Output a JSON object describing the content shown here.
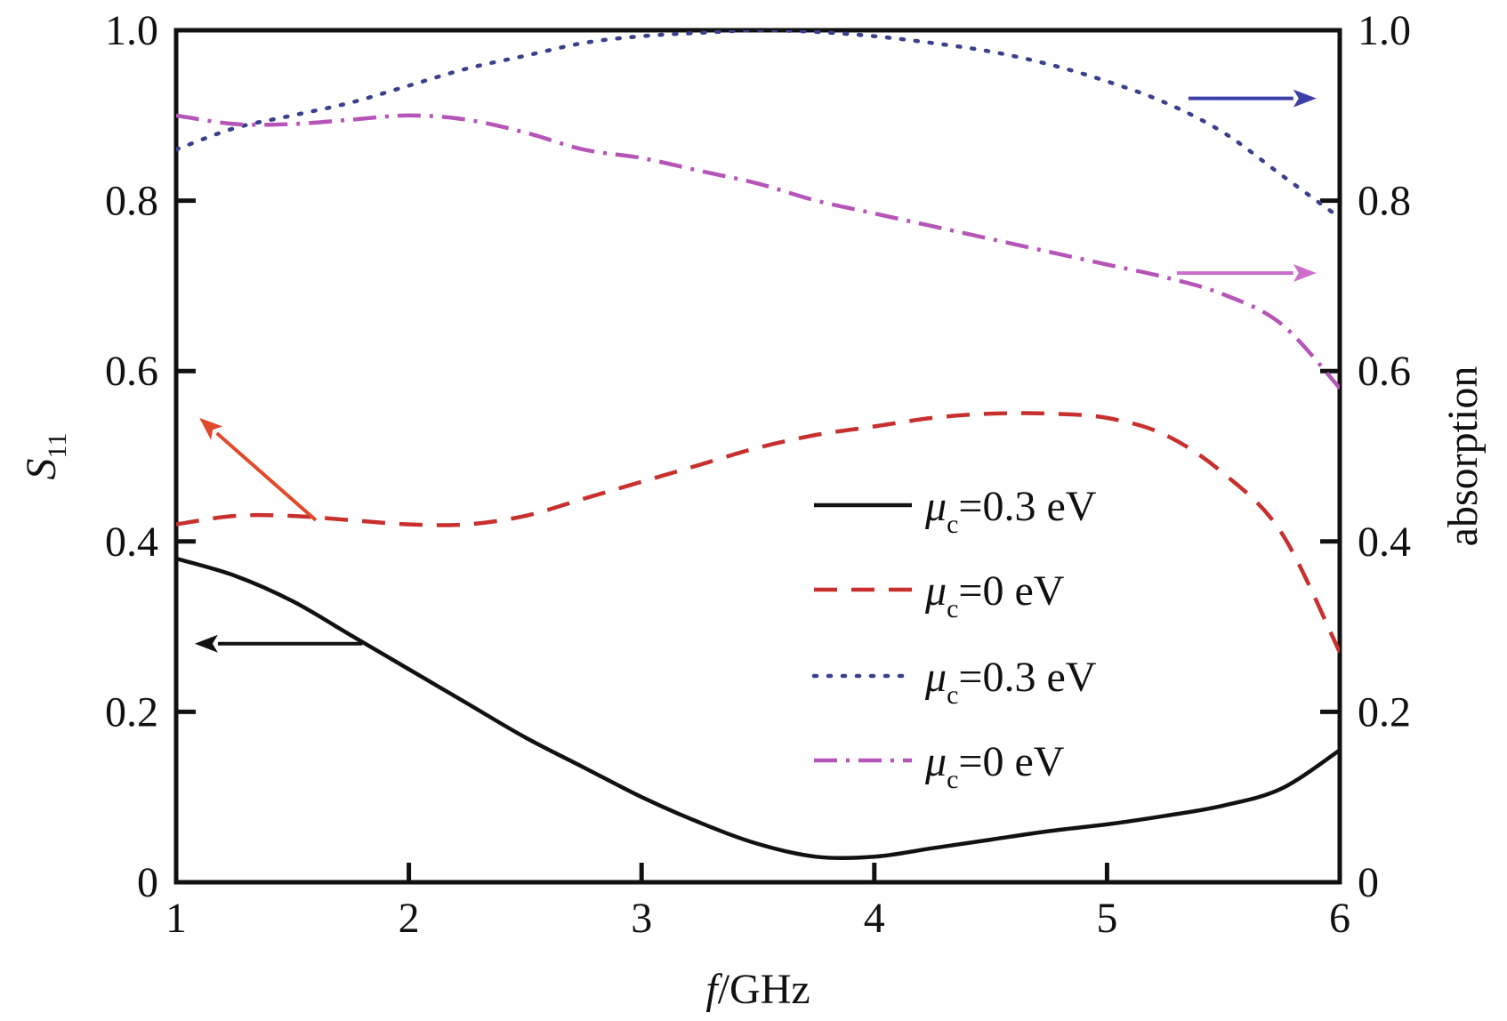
{
  "chart_data": {
    "type": "line",
    "title": "",
    "xlabel": {
      "italic": "f",
      "rest": "/GHz"
    },
    "ylabel_left": {
      "main": "S",
      "sub": "11"
    },
    "ylabel_right": "absorption",
    "xlim": [
      1,
      6
    ],
    "ylim_left": [
      0,
      1.0
    ],
    "ylim_right": [
      0,
      1.0
    ],
    "grid": false,
    "legend_position": "center-right",
    "x_ticks": [
      "1",
      "2",
      "3",
      "4",
      "5",
      "6"
    ],
    "y_ticks_left": [
      "0",
      "0.2",
      "0.4",
      "0.6",
      "0.8",
      "1.0"
    ],
    "y_ticks_right": [
      "0",
      "0.2",
      "0.4",
      "0.6",
      "0.8",
      "1.0"
    ],
    "series": [
      {
        "name_mu": "μ",
        "name_sub": "c",
        "name_rest": "=0.3 eV",
        "axis": "left",
        "style": "solid",
        "color": "#111111",
        "x": [
          1.0,
          1.25,
          1.5,
          1.75,
          2.0,
          2.25,
          2.5,
          2.75,
          3.0,
          3.25,
          3.5,
          3.75,
          4.0,
          4.25,
          4.5,
          4.75,
          5.0,
          5.25,
          5.5,
          5.75,
          6.0
        ],
        "y": [
          0.38,
          0.36,
          0.33,
          0.29,
          0.25,
          0.21,
          0.17,
          0.135,
          0.1,
          0.07,
          0.045,
          0.03,
          0.03,
          0.04,
          0.05,
          0.06,
          0.068,
          0.078,
          0.09,
          0.11,
          0.155
        ]
      },
      {
        "name_mu": "μ",
        "name_sub": "c",
        "name_rest": "=0 eV",
        "axis": "left",
        "style": "dashed",
        "color": "#c8302e",
        "x": [
          1.0,
          1.25,
          1.5,
          1.75,
          2.0,
          2.25,
          2.5,
          2.75,
          3.0,
          3.25,
          3.5,
          3.75,
          4.0,
          4.25,
          4.5,
          4.75,
          5.0,
          5.25,
          5.5,
          5.75,
          6.0
        ],
        "y": [
          0.42,
          0.43,
          0.43,
          0.425,
          0.42,
          0.42,
          0.43,
          0.45,
          0.47,
          0.49,
          0.51,
          0.525,
          0.535,
          0.545,
          0.55,
          0.55,
          0.545,
          0.525,
          0.48,
          0.41,
          0.27
        ]
      },
      {
        "name_mu": "μ",
        "name_sub": "c",
        "name_rest": "=0.3 eV",
        "axis": "right",
        "style": "dotted",
        "color": "#3b3f8c",
        "x": [
          1.0,
          1.25,
          1.5,
          1.75,
          2.0,
          2.25,
          2.5,
          2.75,
          3.0,
          3.25,
          3.5,
          3.75,
          4.0,
          4.25,
          4.5,
          4.75,
          5.0,
          5.25,
          5.5,
          5.75,
          6.0
        ],
        "y": [
          0.86,
          0.885,
          0.9,
          0.915,
          0.935,
          0.955,
          0.97,
          0.985,
          0.993,
          0.997,
          1.0,
          0.998,
          0.993,
          0.985,
          0.975,
          0.96,
          0.94,
          0.915,
          0.88,
          0.83,
          0.78
        ]
      },
      {
        "name_mu": "μ",
        "name_sub": "c",
        "name_rest": "=0 eV",
        "axis": "right",
        "style": "dashdot",
        "color": "#b655b8",
        "x": [
          1.0,
          1.25,
          1.5,
          1.75,
          2.0,
          2.25,
          2.5,
          2.75,
          3.0,
          3.25,
          3.5,
          3.75,
          4.0,
          4.25,
          4.5,
          4.75,
          5.0,
          5.25,
          5.5,
          5.75,
          6.0
        ],
        "y": [
          0.9,
          0.89,
          0.89,
          0.895,
          0.9,
          0.895,
          0.88,
          0.86,
          0.85,
          0.835,
          0.82,
          0.8,
          0.785,
          0.77,
          0.755,
          0.74,
          0.725,
          0.71,
          0.69,
          0.655,
          0.58
        ]
      }
    ],
    "annotations": [
      {
        "type": "arrow",
        "color": "#111111",
        "from": [
          1.8,
          0.28
        ],
        "to": [
          1.08,
          0.28
        ],
        "axis": "left"
      },
      {
        "type": "arrow",
        "color": "#e04a2a",
        "from": [
          1.6,
          0.425
        ],
        "to": [
          1.1,
          0.545
        ],
        "axis": "left"
      },
      {
        "type": "arrow",
        "color": "#3b3fa8",
        "from": [
          5.35,
          0.92
        ],
        "to": [
          5.9,
          0.92
        ],
        "axis": "right"
      },
      {
        "type": "arrow",
        "color": "#cc6fcc",
        "from": [
          5.3,
          0.715
        ],
        "to": [
          5.9,
          0.715
        ],
        "axis": "right"
      }
    ]
  }
}
